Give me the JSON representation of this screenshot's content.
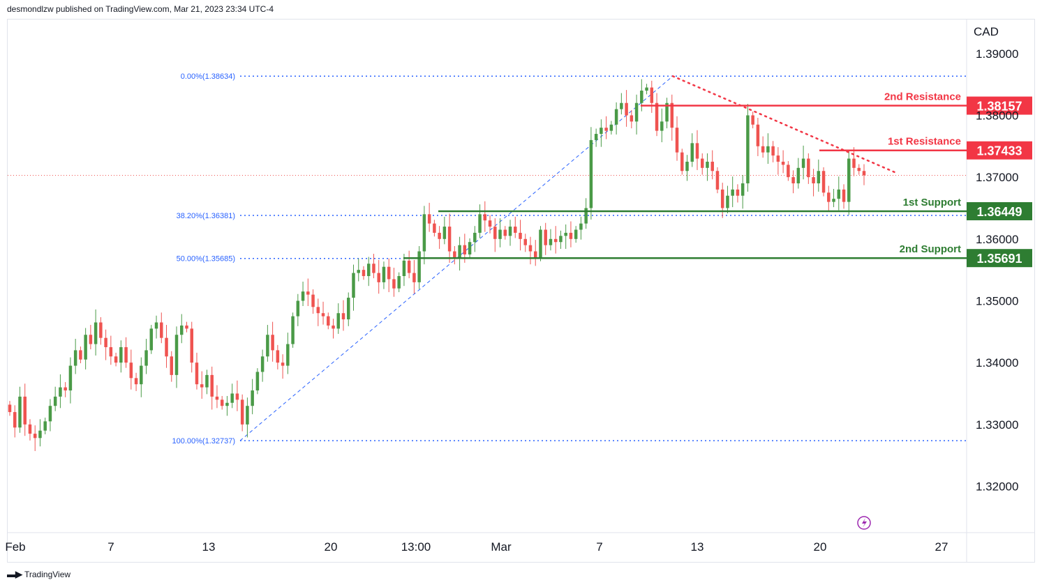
{
  "header": {
    "text": "desmondlzw published on TradingView.com, Mar 21, 2023 23:34 UTC-4"
  },
  "footer": {
    "brand": "TradingView"
  },
  "colors": {
    "up": "#4a9a47",
    "down": "#ef5350",
    "resistance": "#f23645",
    "support": "#2e7d32",
    "fib": "#2962ff",
    "axis_text": "#131722"
  },
  "chart_data": {
    "type": "candlestick",
    "currency": "CAD",
    "ylim": [
      1.3125,
      1.3955
    ],
    "y_ticks": [
      "1.39000",
      "1.38000",
      "1.37000",
      "1.36000",
      "1.35000",
      "1.34000",
      "1.33000",
      "1.32000"
    ],
    "x_labels": [
      "Feb",
      "7",
      "13",
      "20",
      "13:00",
      "Mar",
      "7",
      "13",
      "20",
      "27"
    ],
    "levels": [
      {
        "label": "2nd Resistance",
        "value": 1.38157,
        "value_text": "1.38157",
        "kind": "resistance"
      },
      {
        "label": "1st Resistance",
        "value": 1.37433,
        "value_text": "1.37433",
        "kind": "resistance"
      },
      {
        "label": "1st Support",
        "value": 1.36449,
        "value_text": "1.36449",
        "kind": "support"
      },
      {
        "label": "2nd Support",
        "value": 1.35691,
        "value_text": "1.35691",
        "kind": "support"
      }
    ],
    "fibonacci": [
      {
        "label": "0.00%(1.38634)",
        "value": 1.38634
      },
      {
        "label": "38.20%(1.36381)",
        "value": 1.36381
      },
      {
        "label": "50.00%(1.35685)",
        "value": 1.35685
      },
      {
        "label": "100.00%(1.32737)",
        "value": 1.32737
      }
    ],
    "last_price": 1.3703,
    "candles_close": [
      1.332,
      1.3295,
      1.3345,
      1.33,
      1.3285,
      1.3278,
      1.329,
      1.3305,
      1.333,
      1.3345,
      1.336,
      1.3355,
      1.3395,
      1.342,
      1.3405,
      1.3445,
      1.343,
      1.3465,
      1.344,
      1.3425,
      1.341,
      1.34,
      1.3425,
      1.34,
      1.3375,
      1.3365,
      1.3395,
      1.342,
      1.3455,
      1.3465,
      1.344,
      1.341,
      1.338,
      1.3445,
      1.346,
      1.3455,
      1.34,
      1.3365,
      1.336,
      1.338,
      1.3345,
      1.334,
      1.333,
      1.3335,
      1.335,
      1.334,
      1.33,
      1.333,
      1.3355,
      1.3385,
      1.341,
      1.3445,
      1.342,
      1.34,
      1.3395,
      1.343,
      1.3475,
      1.35,
      1.3515,
      1.351,
      1.349,
      1.348,
      1.3475,
      1.346,
      1.3455,
      1.348,
      1.347,
      1.3505,
      1.3545,
      1.355,
      1.354,
      1.356,
      1.3545,
      1.353,
      1.3555,
      1.3535,
      1.352,
      1.354,
      1.3565,
      1.3545,
      1.353,
      1.358,
      1.364,
      1.3625,
      1.361,
      1.36,
      1.362,
      1.358,
      1.357,
      1.359,
      1.3575,
      1.3595,
      1.361,
      1.364,
      1.363,
      1.362,
      1.36,
      1.3615,
      1.3605,
      1.362,
      1.361,
      1.36,
      1.359,
      1.358,
      1.357,
      1.3615,
      1.359,
      1.36,
      1.3595,
      1.3605,
      1.361,
      1.36,
      1.3615,
      1.3625,
      1.365,
      1.376,
      1.377,
      1.378,
      1.3775,
      1.3785,
      1.381,
      1.382,
      1.38,
      1.379,
      1.382,
      1.384,
      1.3845,
      1.382,
      1.3775,
      1.379,
      1.382,
      1.378,
      1.374,
      1.371,
      1.3725,
      1.3755,
      1.373,
      1.3715,
      1.3725,
      1.371,
      1.368,
      1.365,
      1.367,
      1.368,
      1.367,
      1.369,
      1.38,
      1.3785,
      1.375,
      1.374,
      1.375,
      1.3735,
      1.3725,
      1.372,
      1.37,
      1.369,
      1.3715,
      1.373,
      1.37,
      1.369,
      1.371,
      1.3675,
      1.366,
      1.3665,
      1.368,
      1.366,
      1.373,
      1.3715,
      1.371,
      1.3703
    ]
  }
}
